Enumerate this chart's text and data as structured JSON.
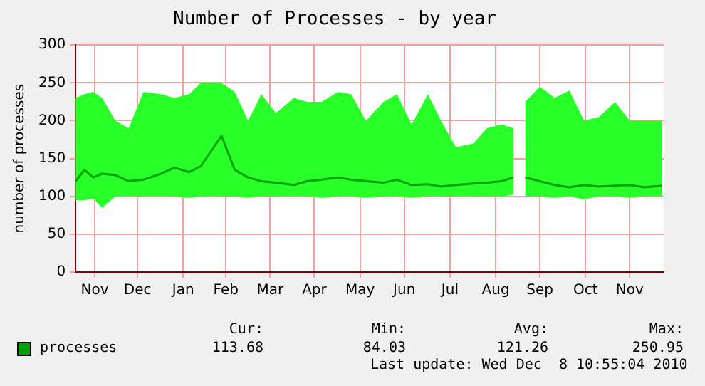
{
  "chart_data": {
    "type": "line",
    "title": "Number of Processes - by year",
    "ylabel": "number of processes",
    "x": [
      "2009-11-04",
      "2009-11-10",
      "2009-11-16",
      "2009-11-22",
      "2009-12-01",
      "2009-12-10",
      "2009-12-20",
      "2010-01-01",
      "2010-01-10",
      "2010-01-20",
      "2010-01-28",
      "2010-02-11",
      "2010-02-20",
      "2010-03-01",
      "2010-03-10",
      "2010-03-20",
      "2010-04-01",
      "2010-04-10",
      "2010-04-20",
      "2010-05-01",
      "2010-05-10",
      "2010-05-20",
      "2010-06-01",
      "2010-06-10",
      "2010-06-20",
      "2010-07-01",
      "2010-07-10",
      "2010-07-20",
      "2010-08-01",
      "2010-08-10",
      "2010-08-20",
      "2010-08-28",
      "2010-09-01",
      "2010-09-05",
      "2010-09-15",
      "2010-09-25",
      "2010-10-05",
      "2010-10-15",
      "2010-10-25",
      "2010-11-05",
      "2010-11-15",
      "2010-11-25",
      "2010-12-07"
    ],
    "series": [
      {
        "name": "processes",
        "color": "#00a000",
        "values": [
          120,
          135,
          125,
          130,
          128,
          120,
          122,
          130,
          138,
          132,
          140,
          180,
          135,
          125,
          120,
          118,
          115,
          120,
          122,
          125,
          122,
          120,
          118,
          122,
          115,
          116,
          113,
          115,
          117,
          118,
          120,
          125,
          null,
          125,
          120,
          115,
          112,
          115,
          113,
          114,
          115,
          112,
          114
        ],
        "lower": [
          95,
          95,
          97,
          85,
          100,
          100,
          100,
          100,
          100,
          98,
          100,
          100,
          100,
          98,
          100,
          100,
          100,
          100,
          98,
          100,
          100,
          98,
          100,
          100,
          98,
          100,
          100,
          100,
          100,
          100,
          100,
          102,
          null,
          100,
          100,
          98,
          100,
          96,
          100,
          100,
          98,
          100,
          100
        ],
        "upper": [
          230,
          235,
          238,
          230,
          200,
          190,
          238,
          235,
          230,
          235,
          250,
          250,
          238,
          200,
          235,
          210,
          230,
          225,
          225,
          238,
          235,
          200,
          225,
          235,
          195,
          235,
          200,
          165,
          170,
          190,
          195,
          190,
          null,
          225,
          245,
          230,
          240,
          200,
          205,
          225,
          200,
          200,
          200
        ]
      }
    ],
    "xlim": [
      "2009-11-04",
      "2010-12-08"
    ],
    "xticks": [
      {
        "value": "2009-11-17",
        "label": "Nov"
      },
      {
        "value": "2009-12-16",
        "label": "Dec"
      },
      {
        "value": "2010-01-16",
        "label": "Jan"
      },
      {
        "value": "2010-02-14",
        "label": "Feb"
      },
      {
        "value": "2010-03-16",
        "label": "Mar"
      },
      {
        "value": "2010-04-15",
        "label": "Apr"
      },
      {
        "value": "2010-05-16",
        "label": "May"
      },
      {
        "value": "2010-06-15",
        "label": "Jun"
      },
      {
        "value": "2010-07-16",
        "label": "Jul"
      },
      {
        "value": "2010-08-16",
        "label": "Aug"
      },
      {
        "value": "2010-09-15",
        "label": "Sep"
      },
      {
        "value": "2010-10-16",
        "label": "Oct"
      },
      {
        "value": "2010-11-15",
        "label": "Nov"
      }
    ],
    "ylim": [
      0,
      300
    ],
    "yticks": [
      0,
      50,
      100,
      150,
      200,
      250,
      300
    ],
    "grid": true,
    "legend": "bottom left",
    "marker": "none",
    "line_style": "solid",
    "annotations": [
      "Cur:",
      "113.68",
      "Min:",
      "84.03",
      "Avg:",
      "121.26",
      "Max:",
      "250.95",
      "Last update: Wed Dec  8 10:55:04 2010"
    ]
  }
}
